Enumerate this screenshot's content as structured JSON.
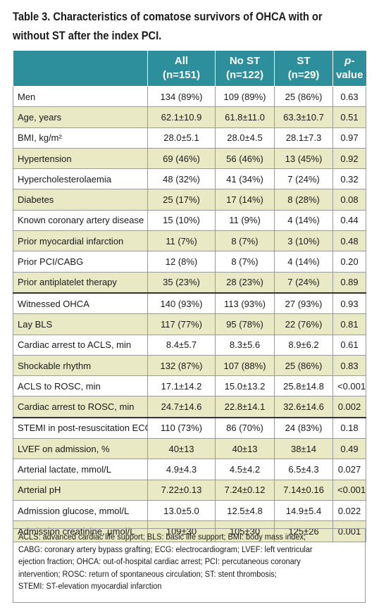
{
  "title_line1": "Table 3. Characteristics of comatose survivors of OHCA with or",
  "title_line2": "without ST after the index PCI.",
  "columns": [
    {
      "label": "",
      "sub": ""
    },
    {
      "label": "All",
      "sub": "(n=151)"
    },
    {
      "label": "No ST",
      "sub": "(n=122)"
    },
    {
      "label": "ST",
      "sub": "(n=29)"
    },
    {
      "label_italic": "p",
      "label": "-value",
      "sub": ""
    }
  ],
  "rows": [
    {
      "label": "Men",
      "all": "134 (89%)",
      "no_st": "109 (89%)",
      "st": "25 (86%)",
      "p": "0.63"
    },
    {
      "label": "Age, years",
      "all": "62.1±10.9",
      "no_st": "61.8±11.0",
      "st": "63.3±10.7",
      "p": "0.51"
    },
    {
      "label": "BMI, kg/m²",
      "all": "28.0±5.1",
      "no_st": "28.0±4.5",
      "st": "28.1±7.3",
      "p": "0.97"
    },
    {
      "label": "Hypertension",
      "all": "69 (46%)",
      "no_st": "56 (46%)",
      "st": "13 (45%)",
      "p": "0.92"
    },
    {
      "label": "Hypercholesterolaemia",
      "all": "48 (32%)",
      "no_st": "41 (34%)",
      "st": "7 (24%)",
      "p": "0.32"
    },
    {
      "label": "Diabetes",
      "all": "25 (17%)",
      "no_st": "17 (14%)",
      "st": "8 (28%)",
      "p": "0.08"
    },
    {
      "label": "Known coronary artery disease",
      "all": "15 (10%)",
      "no_st": "11 (9%)",
      "st": "4 (14%)",
      "p": "0.44"
    },
    {
      "label": "Prior myocardial infarction",
      "all": "11 (7%)",
      "no_st": "8 (7%)",
      "st": "3 (10%)",
      "p": "0.48"
    },
    {
      "label": "Prior PCI/CABG",
      "all": "12 (8%)",
      "no_st": "8 (7%)",
      "st": "4 (14%)",
      "p": "0.20"
    },
    {
      "label": "Prior antiplatelet therapy",
      "all": "35 (23%)",
      "no_st": "28 (23%)",
      "st": "7 (24%)",
      "p": "0.89"
    },
    {
      "label": "Witnessed OHCA",
      "all": "140 (93%)",
      "no_st": "113 (93%)",
      "st": "27 (93%)",
      "p": "0.93"
    },
    {
      "label": "Lay BLS",
      "all": "117 (77%)",
      "no_st": "95 (78%)",
      "st": "22 (76%)",
      "p": "0.81"
    },
    {
      "label": "Cardiac arrest to ACLS, min",
      "all": "8.4±5.7",
      "no_st": "8.3±5.6",
      "st": "8.9±6.2",
      "p": "0.61"
    },
    {
      "label": "Shockable rhythm",
      "all": "132 (87%)",
      "no_st": "107 (88%)",
      "st": "25 (86%)",
      "p": "0.83"
    },
    {
      "label": "ACLS to ROSC, min",
      "all": "17.1±14.2",
      "no_st": "15.0±13.2",
      "st": "25.8±14.8",
      "p": "<0.001"
    },
    {
      "label": "Cardiac arrest to ROSC, min",
      "all": "24.7±14.6",
      "no_st": "22.8±14.1",
      "st": "32.6±14.6",
      "p": "0.002"
    },
    {
      "label": "STEMI in post-resuscitation ECG",
      "all": "110 (73%)",
      "no_st": "86 (70%)",
      "st": "24 (83%)",
      "p": "0.18"
    },
    {
      "label": "LVEF on admission, %",
      "all": "40±13",
      "no_st": "40±13",
      "st": "38±14",
      "p": "0.49"
    },
    {
      "label": "Arterial lactate, mmol/L",
      "all": "4.9±4.3",
      "no_st": "4.5±4.2",
      "st": "6.5±4.3",
      "p": "0.027"
    },
    {
      "label": "Arterial pH",
      "all": "7.22±0.13",
      "no_st": "7.24±0.12",
      "st": "7.14±0.16",
      "p": "<0.001"
    },
    {
      "label": "Admission glucose, mmol/L",
      "all": "13.0±5.0",
      "no_st": "12.5±4.8",
      "st": "14.9±5.4",
      "p": "0.022"
    },
    {
      "label": "Admission creatinine, µmol/L",
      "all": "109±30",
      "no_st": "105±30",
      "st": "125±26",
      "p": "0.001"
    }
  ],
  "footnote_lines": [
    "ACLS: advanced cardiac life support; BLS: basic life support; BMI: body mass index;",
    "CABG: coronary artery bypass grafting; ECG: electrocardiogram; LVEF: left ventricular",
    "ejection fraction; OHCA: out-of-hospital cardiac arrest; PCI: percutaneous coronary",
    "intervention; ROSC: return of spontaneous circulation; ST: stent thrombosis;",
    "STEMI: ST-elevation myocardial infarction"
  ],
  "colors": {
    "header_bg": "#2d8f9c",
    "stripe": "#e9e9c6"
  }
}
